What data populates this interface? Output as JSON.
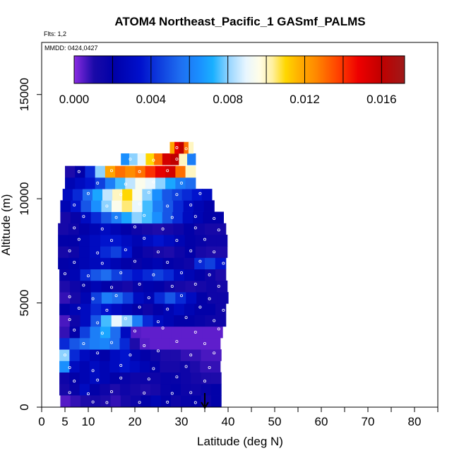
{
  "chart_data": {
    "type": "heatmap",
    "title": "ATOM4 Northeast_Pacific_1 GASmf_PALMS",
    "flights_note": "Flts: 1,2",
    "date_note": "MMDD: 0424,0427",
    "xlabel": "Latitude (deg N)",
    "ylabel": "Altitude (m)",
    "xlim": [
      0,
      85
    ],
    "ylim": [
      0,
      17500
    ],
    "x_ticks": [
      0,
      5,
      10,
      20,
      30,
      40,
      50,
      60,
      70,
      80
    ],
    "x_ticks_labels": [
      "0",
      "5",
      "10",
      "20",
      "30",
      "40",
      "50",
      "60",
      "70",
      "80"
    ],
    "y_ticks": [
      0,
      5000,
      10000,
      15000
    ],
    "y_ticks_labels": [
      "0",
      "5000",
      "10000",
      "15000"
    ],
    "colorbar": {
      "min": 0,
      "max": 0.0172,
      "tick_values": [
        0,
        0.004,
        0.008,
        0.012,
        0.016
      ],
      "tick_labels": [
        "0.000",
        "0.004",
        "0.008",
        "0.012",
        "0.016"
      ],
      "stops": [
        [
          0.0,
          "#8a2be2"
        ],
        [
          0.06,
          "#1a0aa8"
        ],
        [
          0.12,
          "#0000a8"
        ],
        [
          0.2,
          "#0010cc"
        ],
        [
          0.32,
          "#1e6df0"
        ],
        [
          0.38,
          "#1a90ff"
        ],
        [
          0.42,
          "#1ab0ff"
        ],
        [
          0.47,
          "#9ad6ff"
        ],
        [
          0.52,
          "#e8f6ff"
        ],
        [
          0.56,
          "#fffde8"
        ],
        [
          0.6,
          "#fff0a0"
        ],
        [
          0.64,
          "#ffd700"
        ],
        [
          0.68,
          "#ffb000"
        ],
        [
          0.73,
          "#ff8a00"
        ],
        [
          0.8,
          "#ff4000"
        ],
        [
          0.86,
          "#ee0000"
        ],
        [
          0.93,
          "#c00000"
        ],
        [
          1.0,
          "#9e1a1a"
        ]
      ]
    },
    "annotation_arrow_latitude": 35,
    "bands": [
      {
        "alt": 300,
        "x0": 4,
        "x1": 38.5,
        "values": [
          0.0005,
          0.0008,
          0.001,
          0.0012,
          0.001,
          0.0008,
          0.0012,
          0.0015,
          0.002,
          0.0025,
          0.002,
          0.0015,
          0.0018,
          0.002,
          0.0015,
          0.002
        ]
      },
      {
        "alt": 850,
        "x0": 3.8,
        "x1": 38.5,
        "values": [
          0.0012,
          0.0018,
          0.003,
          0.002,
          0.0015,
          0.001,
          0.0015,
          0.0012,
          0.001,
          0.0012,
          0.0018,
          0.002,
          0.0016,
          0.0015,
          0.0018,
          0.002
        ]
      },
      {
        "alt": 1400,
        "x0": 3.8,
        "x1": 38.5,
        "values": [
          0.0015,
          0.002,
          0.0025,
          0.003,
          0.0025,
          0.002,
          0.0018,
          0.0015,
          0.0016,
          0.0015,
          0.0018,
          0.0018,
          0.0015,
          0.0012,
          0.001,
          0.001
        ]
      },
      {
        "alt": 1950,
        "x0": 3.8,
        "x1": 38.3,
        "values": [
          0.0065,
          0.003,
          0.0025,
          0.003,
          0.0025,
          0.003,
          0.0035,
          0.003,
          0.0025,
          0.002,
          0.0012,
          0.0012,
          0.0015,
          0.001,
          0.0008,
          0.0008
        ]
      },
      {
        "alt": 2500,
        "x0": 3.8,
        "x1": 38.5,
        "values": [
          0.008,
          0.004,
          0.003,
          0.0025,
          0.002,
          0.003,
          0.0035,
          0.0025,
          0.002,
          0.0015,
          0.001,
          0.001,
          0.0008,
          0.0008,
          0.0006,
          0.0006
        ]
      },
      {
        "alt": 3050,
        "x0": 3.8,
        "x1": 38.3,
        "values": [
          0.004,
          0.005,
          0.0055,
          0.006,
          0.0062,
          0.0055,
          0.004,
          0.001,
          0.0005,
          0.0004,
          0.0004,
          0.0004,
          0.0004,
          0.0004,
          0.0004,
          0.0004
        ]
      },
      {
        "alt": 3600,
        "x0": 3.8,
        "x1": 38.8,
        "values": [
          0.0008,
          0.002,
          0.0045,
          0.006,
          0.007,
          0.0055,
          0.003,
          0.0005,
          0.0004,
          0.0004,
          0.0004,
          0.0004,
          0.0004,
          0.0004,
          0.0004,
          0.0004
        ]
      },
      {
        "alt": 4150,
        "x0": 3.8,
        "x1": 39.5,
        "values": [
          0.0006,
          0.0015,
          0.003,
          0.005,
          0.0075,
          0.009,
          0.008,
          0.006,
          0.004,
          0.003,
          0.0025,
          0.002,
          0.002,
          0.0018,
          0.0015,
          0.0015
        ]
      },
      {
        "alt": 4700,
        "x0": 3.8,
        "x1": 39.5,
        "values": [
          0.002,
          0.0025,
          0.003,
          0.004,
          0.0035,
          0.003,
          0.0025,
          0.002,
          0.0015,
          0.002,
          0.0025,
          0.003,
          0.0025,
          0.002,
          0.002,
          0.0015
        ]
      },
      {
        "alt": 5250,
        "x0": 3.8,
        "x1": 40.0,
        "values": [
          0.0008,
          0.0012,
          0.0025,
          0.0045,
          0.006,
          0.0055,
          0.0045,
          0.003,
          0.0025,
          0.004,
          0.005,
          0.004,
          0.003,
          0.002,
          0.0015,
          0.0015
        ]
      },
      {
        "alt": 5800,
        "x0": 3.8,
        "x1": 39.8,
        "values": [
          0.001,
          0.0015,
          0.002,
          0.0025,
          0.002,
          0.0015,
          0.0012,
          0.0018,
          0.0022,
          0.002,
          0.0015,
          0.0012,
          0.001,
          0.0012,
          0.0015,
          0.0012
        ]
      },
      {
        "alt": 6350,
        "x0": 3.8,
        "x1": 39.5,
        "values": [
          0.0018,
          0.0025,
          0.004,
          0.005,
          0.0055,
          0.0045,
          0.004,
          0.0035,
          0.004,
          0.0045,
          0.004,
          0.003,
          0.0025,
          0.002,
          0.0015,
          0.001
        ]
      },
      {
        "alt": 6900,
        "x0": 3.5,
        "x1": 39.5,
        "values": [
          0.002,
          0.0022,
          0.0025,
          0.0028,
          0.003,
          0.0025,
          0.002,
          0.0018,
          0.0022,
          0.0025,
          0.002,
          0.0018,
          0.0015,
          0.004,
          0.0045,
          0.0035
        ]
      },
      {
        "alt": 7450,
        "x0": 3.5,
        "x1": 39.8,
        "values": [
          0.0012,
          0.0015,
          0.0025,
          0.003,
          0.004,
          0.0045,
          0.0035,
          0.002,
          0.0015,
          0.0012,
          0.001,
          0.0015,
          0.002,
          0.0012,
          0.001,
          0.001
        ]
      },
      {
        "alt": 8000,
        "x0": 3.5,
        "x1": 39.8,
        "values": [
          0.002,
          0.002,
          0.0025,
          0.003,
          0.0035,
          0.0035,
          0.003,
          0.0025,
          0.003,
          0.0035,
          0.003,
          0.0025,
          0.002,
          0.0018,
          0.0015,
          0.0015
        ]
      },
      {
        "alt": 8550,
        "x0": 3.5,
        "x1": 39.5,
        "values": [
          0.0012,
          0.0015,
          0.002,
          0.0025,
          0.003,
          0.0025,
          0.002,
          0.0015,
          0.0012,
          0.001,
          0.0012,
          0.0015,
          0.002,
          0.0015,
          0.0012,
          0.0012
        ]
      },
      {
        "alt": 9100,
        "x0": 4,
        "x1": 39.0,
        "values": [
          0.0012,
          0.0018,
          0.003,
          0.004,
          0.005,
          0.006,
          0.007,
          0.008,
          0.0075,
          0.0065,
          0.005,
          0.004,
          0.003,
          0.0025,
          0.002,
          0.002
        ]
      },
      {
        "alt": 9650,
        "x0": 4,
        "x1": 37.0,
        "values": [
          0.0025,
          0.0035,
          0.005,
          0.0065,
          0.008,
          0.0095,
          0.0105,
          0.009,
          0.0075,
          0.006,
          0.005,
          0.004,
          0.003,
          0.0025,
          0.002
        ]
      },
      {
        "alt": 10200,
        "x0": 4.5,
        "x1": 36.5,
        "values": [
          0.003,
          0.004,
          0.0055,
          0.007,
          0.0085,
          0.01,
          0.011,
          0.0095,
          0.008,
          0.0065,
          0.005,
          0.0045,
          0.004,
          0.0035,
          0.003
        ]
      },
      {
        "alt": 10750,
        "x0": 5,
        "x1": 33.0,
        "values": [
          0.0025,
          0.003,
          0.0035,
          0.0045,
          0.006,
          0.0075,
          0.0085,
          0.0095,
          0.009,
          0.008,
          0.007,
          0.006,
          0.0055
        ]
      },
      {
        "alt": 11300,
        "x0": 5,
        "x1": 33.0,
        "values": [
          0.001,
          0.002,
          0.004,
          0.008,
          0.012,
          0.013,
          0.0125,
          0.013,
          0.014,
          0.015,
          0.0155,
          0.013,
          0.01
        ]
      },
      {
        "alt": 11900,
        "x0": 17,
        "x1": 33.0,
        "values": [
          0.0065,
          0.008,
          0.009,
          0.011,
          0.013,
          0.0155,
          0.016,
          0.01,
          0.006
        ]
      },
      {
        "alt": 12450,
        "x0": 27.5,
        "x1": 32.5,
        "values": [
          0.012,
          0.015,
          0.016,
          0.013,
          0.01
        ]
      }
    ],
    "sample_points": [
      [
        11,
        250
      ],
      [
        14,
        220
      ],
      [
        21,
        230
      ],
      [
        27,
        240
      ],
      [
        33,
        220
      ],
      [
        6,
        700
      ],
      [
        10,
        640
      ],
      [
        15,
        740
      ],
      [
        22,
        680
      ],
      [
        28,
        660
      ],
      [
        32,
        700
      ],
      [
        7,
        1250
      ],
      [
        12,
        1300
      ],
      [
        17,
        1400
      ],
      [
        23,
        1350
      ],
      [
        29,
        1450
      ],
      [
        35,
        1250
      ],
      [
        6,
        1900
      ],
      [
        11,
        1750
      ],
      [
        17,
        2000
      ],
      [
        24,
        1850
      ],
      [
        31,
        1950
      ],
      [
        36,
        1900
      ],
      [
        5,
        2500
      ],
      [
        12,
        2600
      ],
      [
        19,
        2500
      ],
      [
        25,
        2700
      ],
      [
        32,
        2500
      ],
      [
        37,
        2600
      ],
      [
        9,
        3050
      ],
      [
        15,
        3100
      ],
      [
        22,
        2950
      ],
      [
        29,
        3150
      ],
      [
        35,
        3050
      ],
      [
        7,
        3700
      ],
      [
        13,
        3550
      ],
      [
        20,
        3650
      ],
      [
        26,
        3800
      ],
      [
        33,
        3600
      ],
      [
        38,
        3750
      ],
      [
        6,
        4200
      ],
      [
        12,
        4050
      ],
      [
        18,
        4250
      ],
      [
        25,
        4100
      ],
      [
        31,
        4300
      ],
      [
        37,
        4150
      ],
      [
        8,
        4750
      ],
      [
        14,
        4650
      ],
      [
        21,
        4800
      ],
      [
        27,
        4700
      ],
      [
        34,
        4800
      ],
      [
        39,
        4650
      ],
      [
        6,
        5300
      ],
      [
        11,
        5200
      ],
      [
        16,
        5350
      ],
      [
        23,
        5250
      ],
      [
        30,
        5350
      ],
      [
        36,
        5200
      ],
      [
        9,
        5850
      ],
      [
        15,
        5750
      ],
      [
        21,
        5900
      ],
      [
        28,
        5800
      ],
      [
        33,
        5900
      ],
      [
        38,
        5800
      ],
      [
        5,
        6400
      ],
      [
        10,
        6300
      ],
      [
        17,
        6450
      ],
      [
        24,
        6350
      ],
      [
        30,
        6450
      ],
      [
        36,
        6350
      ],
      [
        7,
        6950
      ],
      [
        13,
        6900
      ],
      [
        20,
        7000
      ],
      [
        27,
        6950
      ],
      [
        34,
        7000
      ],
      [
        39,
        6900
      ],
      [
        6,
        7500
      ],
      [
        12,
        7400
      ],
      [
        18,
        7550
      ],
      [
        25,
        7450
      ],
      [
        32,
        7500
      ],
      [
        37,
        7450
      ],
      [
        8,
        8050
      ],
      [
        15,
        8000
      ],
      [
        22,
        8100
      ],
      [
        29,
        8000
      ],
      [
        35,
        8050
      ],
      [
        7,
        8600
      ],
      [
        13,
        8550
      ],
      [
        20,
        8650
      ],
      [
        26,
        8550
      ],
      [
        33,
        8600
      ],
      [
        38,
        8500
      ],
      [
        9,
        9150
      ],
      [
        16,
        9100
      ],
      [
        22,
        9200
      ],
      [
        28,
        9100
      ],
      [
        33,
        9150
      ],
      [
        37,
        9050
      ],
      [
        7,
        9700
      ],
      [
        14,
        9650
      ],
      [
        21,
        9750
      ],
      [
        27,
        9650
      ],
      [
        32,
        9700
      ],
      [
        10,
        10250
      ],
      [
        17,
        10200
      ],
      [
        23,
        10300
      ],
      [
        29,
        10200
      ],
      [
        34,
        10250
      ],
      [
        12,
        10750
      ],
      [
        18,
        10700
      ],
      [
        24,
        10800
      ],
      [
        30,
        10750
      ],
      [
        8,
        11300
      ],
      [
        15,
        11350
      ],
      [
        21,
        11300
      ],
      [
        27,
        11350
      ],
      [
        19,
        11900
      ],
      [
        24,
        11850
      ],
      [
        29,
        11900
      ],
      [
        29,
        12450
      ],
      [
        31,
        12400
      ]
    ]
  }
}
